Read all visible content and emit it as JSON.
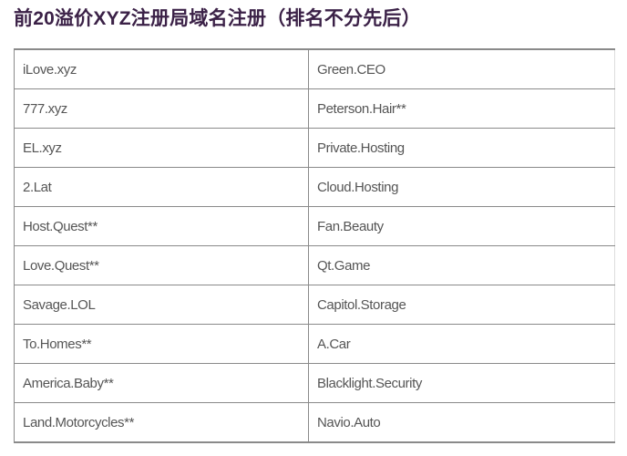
{
  "title": "前20溢价XYZ注册局域名注册（排名不分先后）",
  "rows": [
    [
      "iLove.xyz",
      "Green.CEO"
    ],
    [
      "777.xyz",
      "Peterson.Hair**"
    ],
    [
      "EL.xyz",
      "Private.Hosting"
    ],
    [
      "2.Lat",
      "Cloud.Hosting"
    ],
    [
      "Host.Quest**",
      "Fan.Beauty"
    ],
    [
      "Love.Quest**",
      "Qt.Game"
    ],
    [
      "Savage.LOL",
      "Capitol.Storage"
    ],
    [
      "To.Homes**",
      "A.Car"
    ],
    [
      "America.Baby**",
      "Blacklight.Security"
    ],
    [
      "Land.Motorcycles**",
      "Navio.Auto"
    ]
  ]
}
